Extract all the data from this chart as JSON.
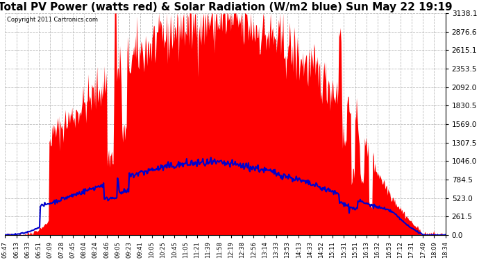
{
  "title": "Total PV Power (watts red) & Solar Radiation (W/m2 blue) Sun May 22 19:19",
  "copyright_text": "Copyright 2011 Cartronics.com",
  "y_max": 3138.1,
  "y_min": 0.0,
  "y_ticks": [
    0.0,
    261.5,
    523.0,
    784.5,
    1046.0,
    1307.5,
    1569.0,
    1830.5,
    2092.0,
    2353.5,
    2615.1,
    2876.6,
    3138.1
  ],
  "x_labels": [
    "05:47",
    "06:13",
    "06:33",
    "06:51",
    "07:09",
    "07:28",
    "07:45",
    "08:04",
    "08:24",
    "08:46",
    "09:05",
    "09:23",
    "09:41",
    "10:05",
    "10:25",
    "10:45",
    "11:05",
    "11:21",
    "11:39",
    "11:58",
    "12:19",
    "12:38",
    "12:56",
    "13:14",
    "13:33",
    "13:53",
    "14:13",
    "14:33",
    "14:52",
    "15:11",
    "15:31",
    "15:51",
    "16:13",
    "16:32",
    "16:53",
    "17:12",
    "17:31",
    "17:49",
    "18:09",
    "18:34"
  ],
  "background_color": "#ffffff",
  "plot_bg_color": "#ffffff",
  "grid_color": "#bbbbbb",
  "red_color": "#ff0000",
  "blue_color": "#0000cc",
  "title_fontsize": 11,
  "solar_scale": 3.8,
  "n_dense": 600
}
